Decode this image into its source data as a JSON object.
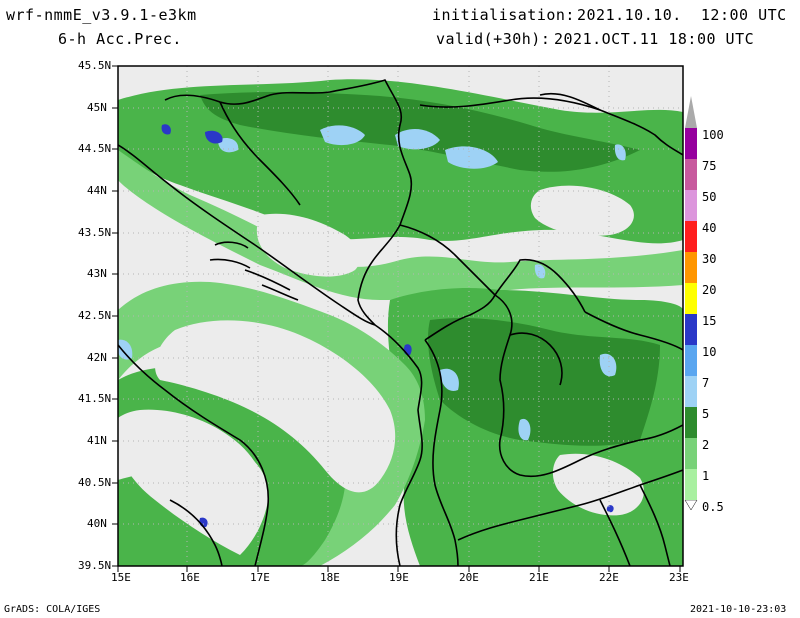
{
  "header": {
    "model": "wrf-nmmE_v3.9.1-e3km",
    "field": "6-h Acc.Prec.",
    "init_label": "initialisation:",
    "init_value": "2021.10.10.  12:00 UTC",
    "valid_label": "valid(+30h):",
    "valid_value": "2021.OCT.11 18:00 UTC"
  },
  "footer": {
    "credit": "GrADS: COLA/IGES",
    "timestamp": "2021-10-10-23:03"
  },
  "axes": {
    "lon_labels": [
      "15E",
      "16E",
      "17E",
      "18E",
      "19E",
      "20E",
      "21E",
      "22E",
      "23E"
    ],
    "lat_labels": [
      "45.5N",
      "45N",
      "44.5N",
      "44N",
      "43.5N",
      "43N",
      "42.5N",
      "42N",
      "41.5N",
      "41N",
      "40.5N",
      "40N",
      "39.5N"
    ]
  },
  "legend": {
    "levels": [
      "0.5",
      "1",
      "2",
      "5",
      "7",
      "10",
      "15",
      "20",
      "30",
      "40",
      "50",
      "75",
      "100"
    ],
    "colors": [
      "#a8f0a0",
      "#78d278",
      "#4ab44a",
      "#2e8c2e",
      "#9ed2f5",
      "#5aa6f0",
      "#2a38c8",
      "#ffff00",
      "#ff9600",
      "#ff1e1e",
      "#dc96dc",
      "#c85a9e",
      "#96009e",
      "#aaaaaa"
    ]
  },
  "colors": {
    "sea": "#ececec",
    "land_bg": "#ececec",
    "coast": "#000000",
    "grid": "#b4b4b4"
  }
}
